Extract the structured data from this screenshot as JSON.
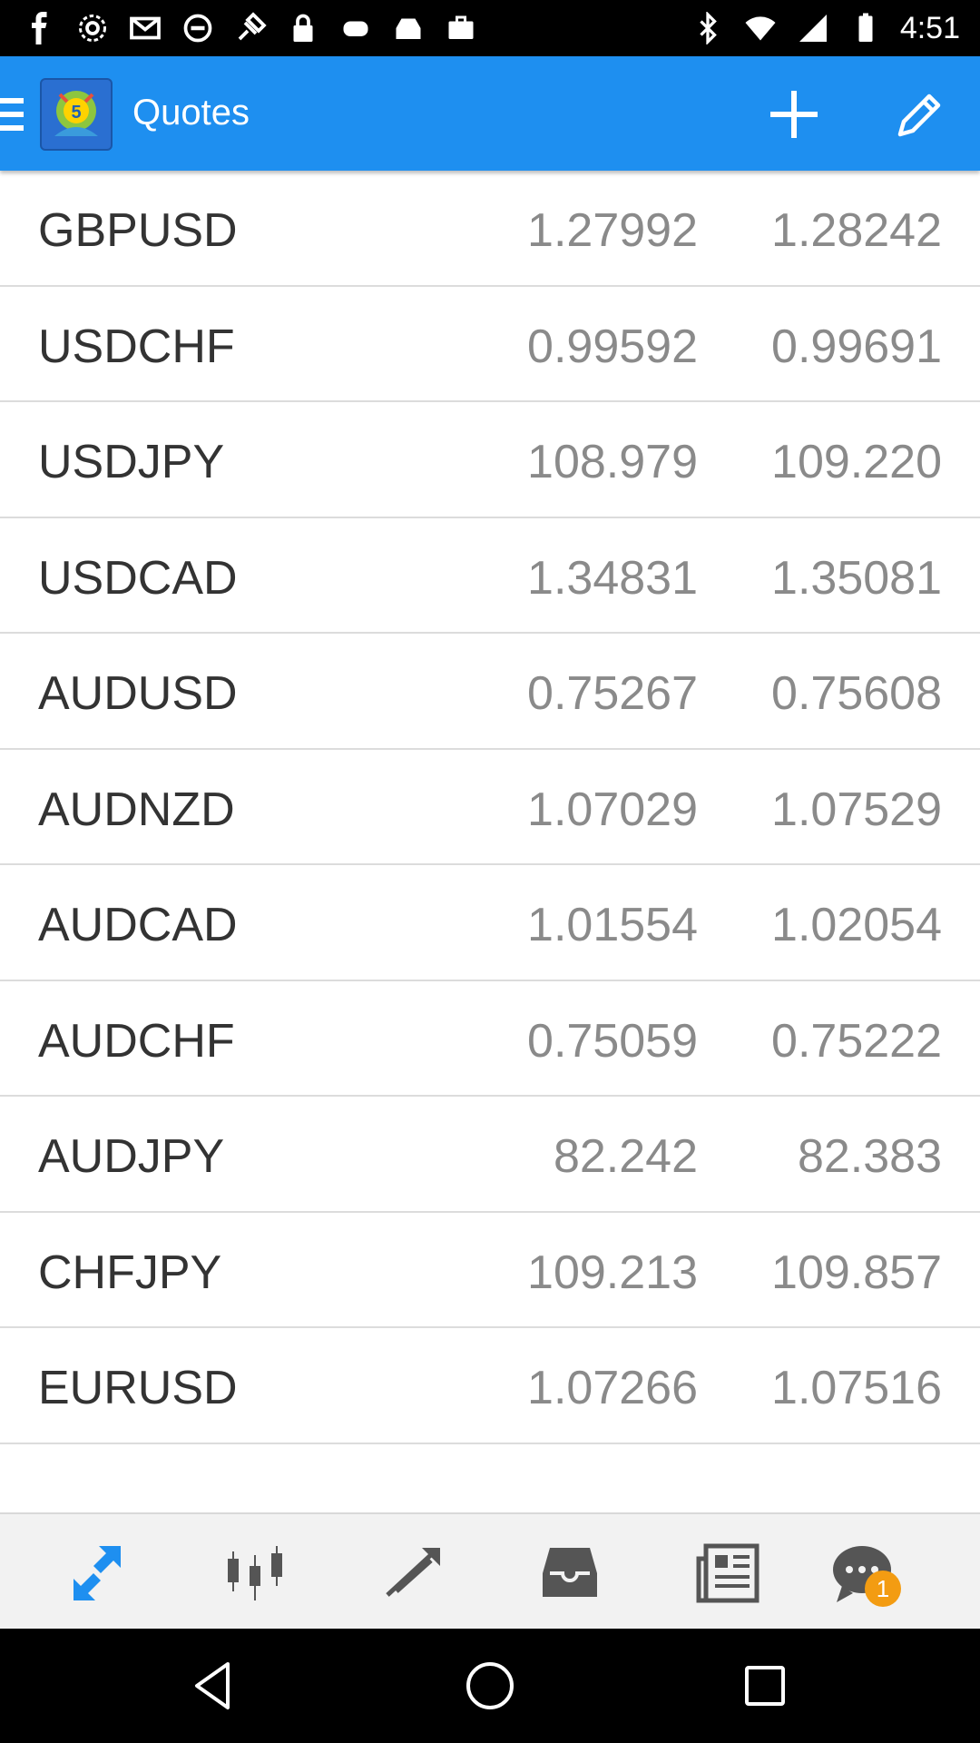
{
  "status_bar": {
    "time": "4:51",
    "icons": [
      "facebook-icon",
      "settings-gear-icon",
      "gmail-icon",
      "blocked-icon",
      "fake-gps-icon",
      "lock-icon",
      "game-controller-icon",
      "inbox-check-icon",
      "briefcase-icon",
      "bluetooth-icon",
      "wifi-icon",
      "signal-icon",
      "battery-icon"
    ]
  },
  "action_bar": {
    "title": "Quotes",
    "add_icon": "plus-icon",
    "edit_icon": "pencil-icon"
  },
  "quotes": [
    {
      "symbol": "GBPUSD",
      "bid": "1.27992",
      "ask": "1.28242"
    },
    {
      "symbol": "USDCHF",
      "bid": "0.99592",
      "ask": "0.99691"
    },
    {
      "symbol": "USDJPY",
      "bid": "108.979",
      "ask": "109.220"
    },
    {
      "symbol": "USDCAD",
      "bid": "1.34831",
      "ask": "1.35081"
    },
    {
      "symbol": "AUDUSD",
      "bid": "0.75267",
      "ask": "0.75608"
    },
    {
      "symbol": "AUDNZD",
      "bid": "1.07029",
      "ask": "1.07529"
    },
    {
      "symbol": "AUDCAD",
      "bid": "1.01554",
      "ask": "1.02054"
    },
    {
      "symbol": "AUDCHF",
      "bid": "0.75059",
      "ask": "0.75222"
    },
    {
      "symbol": "AUDJPY",
      "bid": "82.242",
      "ask": "82.383"
    },
    {
      "symbol": "CHFJPY",
      "bid": "109.213",
      "ask": "109.857"
    },
    {
      "symbol": "EURUSD",
      "bid": "1.07266",
      "ask": "1.07516"
    }
  ],
  "bottom_nav": {
    "items": [
      "quotes-arrows-icon",
      "charts-candles-icon",
      "trade-icon",
      "history-inbox-icon",
      "news-icon",
      "chat-icon"
    ],
    "chat_badge": "1",
    "active_color": "#1e8ff0",
    "inactive_color": "#555555"
  },
  "colors": {
    "action_bar": "#1e8ff0",
    "badge": "#f39c12"
  }
}
